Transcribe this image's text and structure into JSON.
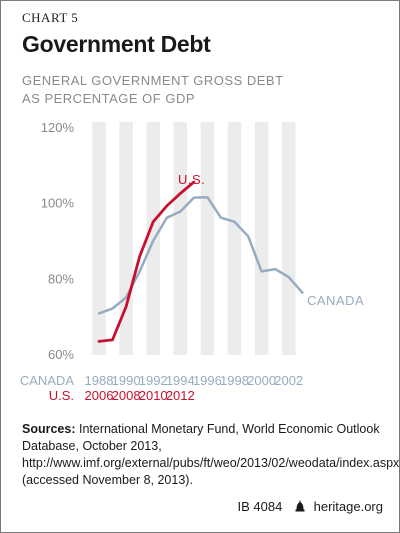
{
  "header": {
    "chart_label": "CHART 5",
    "title": "Government Debt",
    "subtitle_line1": "GENERAL GOVERNMENT GROSS DEBT",
    "subtitle_line2": "AS PERCENTAGE OF GDP"
  },
  "chart_data": {
    "type": "line",
    "title": "Government Debt",
    "subtitle": "GENERAL GOVERNMENT GROSS DEBT AS PERCENTAGE OF GDP",
    "ylim": [
      60,
      120
    ],
    "yticks": [
      60,
      80,
      100,
      120
    ],
    "ytick_labels": [
      "60%",
      "80%",
      "100%",
      "120%"
    ],
    "x_axes": [
      {
        "name": "CANADA",
        "range": [
          1988,
          2003
        ],
        "tick_labels": [
          "1988",
          "1990",
          "1992",
          "1994",
          "1996",
          "1998",
          "2000",
          "2002"
        ]
      },
      {
        "name": "U.S.",
        "range": [
          2006,
          2021
        ],
        "tick_labels": [
          "2006",
          "2008",
          "2010",
          "2012"
        ]
      }
    ],
    "alternating_year_bands": true,
    "series": [
      {
        "name": "CANADA",
        "color": "#97abc0",
        "x": [
          1988,
          1989,
          1990,
          1991,
          1992,
          1993,
          1994,
          1995,
          1996,
          1997,
          1998,
          1999,
          2000,
          2001,
          2002,
          2003
        ],
        "values": [
          71,
          72.3,
          75.2,
          82.1,
          90.2,
          96.3,
          97.9,
          101.6,
          101.7,
          96.3,
          95.2,
          91.4,
          82.1,
          82.7,
          80.6,
          76.5
        ]
      },
      {
        "name": "U.S.",
        "color": "#c8102e",
        "x": [
          2006,
          2007,
          2008,
          2009,
          2010,
          2011,
          2012,
          2013
        ],
        "values": [
          63.6,
          64.0,
          72.8,
          86.1,
          95.2,
          99.4,
          102.7,
          105.7
        ]
      }
    ]
  },
  "sources": {
    "label": "Sources:",
    "text": " International Monetary Fund, World Economic Outlook Database, October 2013, http://www.imf.org/external/pubs/ft/weo/2013/02/weodata/index.aspx (accessed November 8, 2013)."
  },
  "footer": {
    "report_id": "IB 4084",
    "site": "heritage.org"
  },
  "colors": {
    "us_red": "#c8102e",
    "canada_blue": "#97abc0",
    "band_gray": "#ececec",
    "tick_gray": "#8a8a8a"
  }
}
